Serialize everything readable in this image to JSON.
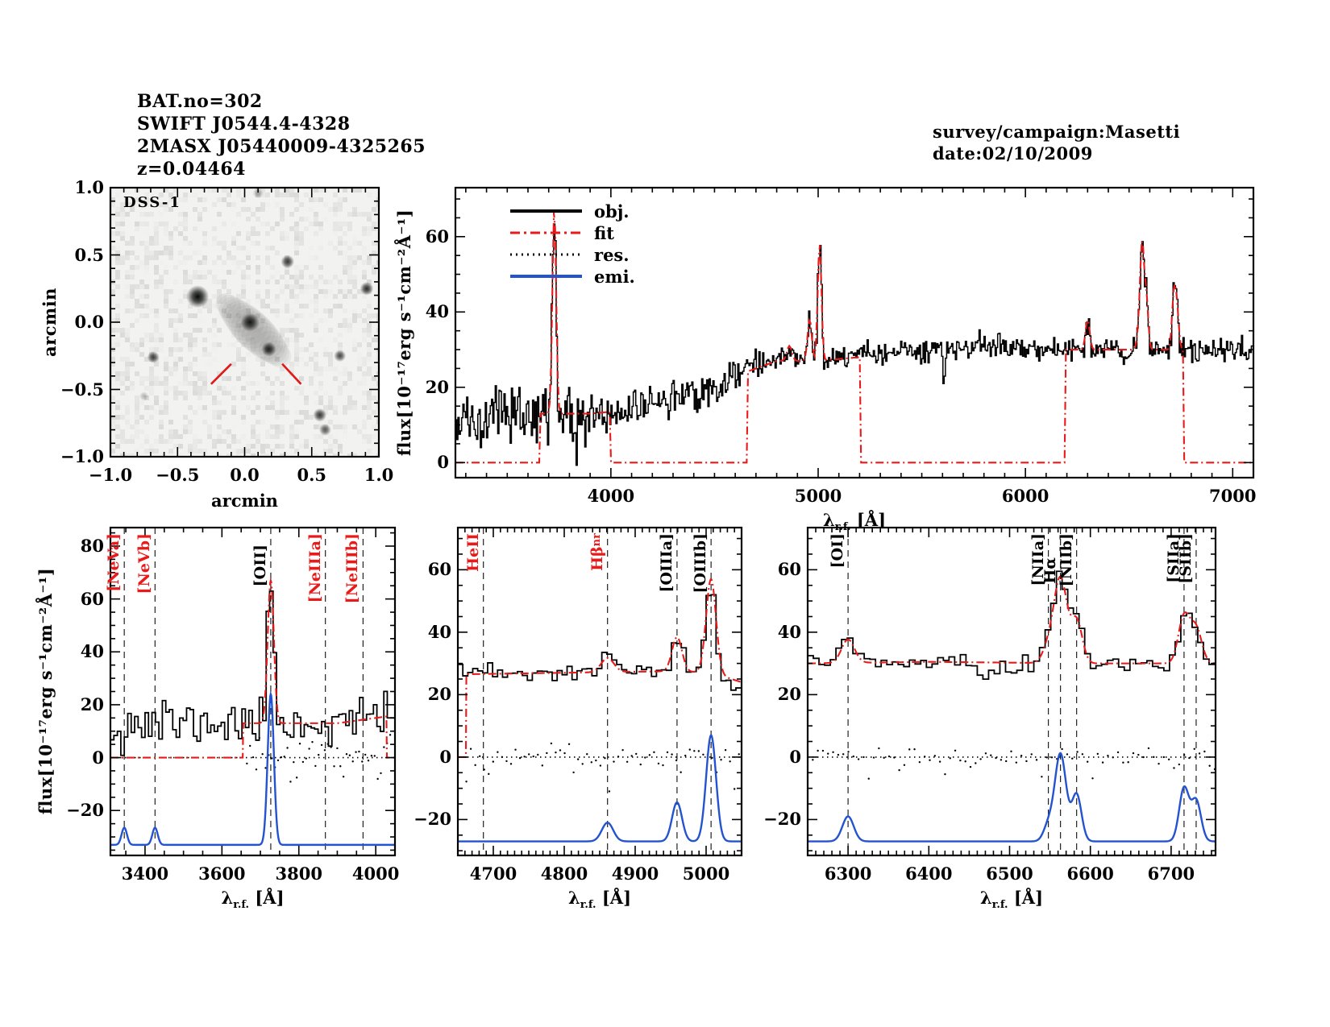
{
  "title_block": {
    "lines": [
      "BAT.no=302",
      "SWIFT J0544.4-4328",
      "2MASX J05440009-4325265",
      "z=0.04464"
    ]
  },
  "annotation_block": {
    "lines": [
      "survey/campaign:Masetti",
      "date:02/10/2009"
    ]
  },
  "colors": {
    "obj": "#000000",
    "fit": "#e81a1a",
    "res": "#000000",
    "emi": "#2353cf",
    "vline": "#222222",
    "marker_red": "#e01818"
  },
  "flux_axis_label": "flux[10⁻¹⁷erg s⁻¹cm⁻²Å⁻¹]",
  "wavelength_axis": {
    "symbol": "λ",
    "subscript": "r.f.",
    "unit": "[Å]"
  },
  "legend": {
    "items": [
      {
        "label": "obj.",
        "color": "#000000",
        "style": "solid"
      },
      {
        "label": "fit",
        "color": "#e81a1a",
        "style": "dashdot"
      },
      {
        "label": "res.",
        "color": "#000000",
        "style": "dotted"
      },
      {
        "label": "emi.",
        "color": "#2353cf",
        "style": "solid"
      }
    ]
  },
  "chart_data": [
    {
      "id": "dss",
      "type": "heatmap",
      "image_label": "DSS-1",
      "xlabel": "arcmin",
      "ylabel": "arcmin",
      "xlim": [
        -1,
        1
      ],
      "ylim": [
        -1,
        1
      ],
      "xticks": {
        "values": [
          -1,
          -0.5,
          0,
          0.5,
          1
        ],
        "labels": [
          "−1.0",
          "−0.5",
          "0.0",
          "0.5",
          "1.0"
        ],
        "minor": 0.1
      },
      "yticks": {
        "values": [
          -1,
          -0.5,
          0,
          0.5,
          1
        ],
        "labels": [
          "−1.0",
          "−0.5",
          "0.0",
          "0.5",
          "1.0"
        ],
        "minor": 0.1
      },
      "sources": [
        {
          "x": -0.35,
          "y": 0.19,
          "r": 0.085,
          "a": 1.0
        },
        {
          "x": 0.04,
          "y": 0.0,
          "r": 0.07,
          "a": 0.92
        },
        {
          "x": 0.18,
          "y": -0.2,
          "r": 0.055,
          "a": 0.85
        },
        {
          "x": 0.32,
          "y": 0.45,
          "r": 0.05,
          "a": 0.8
        },
        {
          "x": 0.91,
          "y": 0.25,
          "r": 0.05,
          "a": 0.85
        },
        {
          "x": -0.68,
          "y": -0.26,
          "r": 0.045,
          "a": 0.75
        },
        {
          "x": 0.71,
          "y": -0.25,
          "r": 0.045,
          "a": 0.7
        },
        {
          "x": 0.56,
          "y": -0.69,
          "r": 0.05,
          "a": 0.8
        },
        {
          "x": 0.6,
          "y": -0.8,
          "r": 0.045,
          "a": 0.65
        },
        {
          "x": -0.75,
          "y": -0.55,
          "r": 0.035,
          "a": 0.25
        },
        {
          "x": 0.1,
          "y": 0.96,
          "r": 0.04,
          "a": 0.3
        }
      ],
      "galaxy_streak": {
        "x1": -0.14,
        "y1": 0.14,
        "x2": 0.28,
        "y2": -0.27,
        "w": 0.14,
        "a": 0.05
      },
      "target_markers": [
        {
          "x1": -0.25,
          "y1": -0.46,
          "x2": -0.1,
          "y2": -0.31
        },
        {
          "x1": 0.28,
          "y1": -0.31,
          "x2": 0.42,
          "y2": -0.46
        }
      ]
    },
    {
      "id": "full_spectrum",
      "type": "line",
      "xlim": [
        3250,
        7100
      ],
      "ylim": [
        -4,
        73
      ],
      "xticks": {
        "values": [
          4000,
          5000,
          6000,
          7000
        ],
        "labels": [
          "4000",
          "5000",
          "6000",
          "7000"
        ],
        "minor": 100
      },
      "yticks": {
        "values": [
          0,
          20,
          40,
          60
        ],
        "labels": [
          "0",
          "20",
          "40",
          "60"
        ],
        "minor": 5
      },
      "bin": 6,
      "continuum": [
        [
          3250,
          11
        ],
        [
          3450,
          12
        ],
        [
          3650,
          13
        ],
        [
          3900,
          13
        ],
        [
          4100,
          14
        ],
        [
          4300,
          17
        ],
        [
          4500,
          20
        ],
        [
          4650,
          24
        ],
        [
          4800,
          27
        ],
        [
          5000,
          27
        ],
        [
          5200,
          28
        ],
        [
          5500,
          30
        ],
        [
          5800,
          31
        ],
        [
          6100,
          30
        ],
        [
          6400,
          30
        ],
        [
          6700,
          30
        ],
        [
          7100,
          30
        ]
      ],
      "emission_lines": [
        [
          3727,
          55,
          9
        ],
        [
          4861,
          4,
          12
        ],
        [
          4959,
          11,
          10
        ],
        [
          5007,
          31,
          9
        ],
        [
          6300,
          8,
          10
        ],
        [
          6548,
          5,
          9
        ],
        [
          6563,
          27,
          9
        ],
        [
          6583,
          14,
          9
        ],
        [
          6716,
          14,
          9
        ],
        [
          6731,
          10,
          9
        ]
      ],
      "noise_zones": [
        [
          4000,
          4.0
        ],
        [
          4700,
          2.5
        ],
        [
          7100,
          1.6
        ]
      ],
      "obj_extra": [
        [
          5607,
          -9,
          5
        ],
        [
          6480,
          -3,
          15
        ]
      ],
      "fit_windows": [
        [
          3655,
          4000
        ],
        [
          4660,
          5205
        ],
        [
          6190,
          6762
        ]
      ],
      "has_legend": true
    },
    {
      "id": "zoom_oii",
      "type": "line",
      "xlim": [
        3310,
        4050
      ],
      "ylim": [
        -37,
        87
      ],
      "xticks": {
        "values": [
          3400,
          3600,
          3800,
          4000
        ],
        "labels": [
          "3400",
          "3600",
          "3800",
          "4000"
        ],
        "minor": 50
      },
      "yticks": {
        "values": [
          -20,
          0,
          20,
          40,
          60,
          80
        ],
        "labels": [
          "−20",
          "0",
          "20",
          "40",
          "60",
          "80"
        ],
        "minor": 5
      },
      "bin": 9,
      "continuum": [
        [
          3310,
          13
        ],
        [
          3650,
          13
        ],
        [
          3900,
          13
        ],
        [
          4050,
          16
        ]
      ],
      "emission_lines": [
        [
          3727,
          54,
          8
        ]
      ],
      "noise_zones": [
        [
          3500,
          5.5
        ],
        [
          4050,
          4.2
        ]
      ],
      "obj_extra": [],
      "fit_windows": [
        [
          3655,
          4028
        ]
      ],
      "zero_line": true,
      "residuals": {
        "sigma": 3.2,
        "window": [
          3665,
          4040
        ]
      },
      "emission_component": {
        "baseline": -33,
        "lines": [
          [
            3346,
            6.5,
            7
          ],
          [
            3426,
            6.5,
            7
          ],
          [
            3727,
            57,
            8
          ]
        ]
      },
      "vlines": [
        3346,
        3426,
        3727,
        3869,
        3967
      ],
      "line_markers": [
        {
          "wavelength": 3346,
          "label": "[NeVa]",
          "sub": "",
          "color": "red",
          "offset": 0
        },
        {
          "wavelength": 3426,
          "label": "[NeVb]",
          "sub": "",
          "color": "red",
          "offset": 0
        },
        {
          "wavelength": 3727,
          "label": "[OII]",
          "sub": "",
          "color": "black",
          "offset": 14
        },
        {
          "wavelength": 3869,
          "label": "[NeIIIa]",
          "sub": "",
          "color": "red",
          "offset": 0
        },
        {
          "wavelength": 3967,
          "label": "[NeIIIb]",
          "sub": "",
          "color": "red",
          "offset": 0
        }
      ]
    },
    {
      "id": "zoom_hbeta_oiii",
      "type": "line",
      "xlim": [
        4650,
        5050
      ],
      "ylim": [
        -31.5,
        73.5
      ],
      "xticks": {
        "values": [
          4700,
          4800,
          4900,
          5000
        ],
        "labels": [
          "4700",
          "4800",
          "4900",
          "5000"
        ],
        "minor": 10
      },
      "yticks": {
        "values": [
          -20,
          0,
          20,
          40,
          60
        ],
        "labels": [
          "−20",
          "0",
          "20",
          "40",
          "60"
        ],
        "minor": 5
      },
      "bin": 7,
      "continuum": [
        [
          4650,
          26.5
        ],
        [
          4800,
          27
        ],
        [
          4950,
          27.5
        ],
        [
          5007,
          27
        ],
        [
          5050,
          24
        ]
      ],
      "emission_lines": [
        [
          4861,
          4.5,
          9
        ],
        [
          4959,
          11,
          7
        ],
        [
          5007,
          30,
          7
        ]
      ],
      "noise_zones": [
        [
          5050,
          1.6
        ]
      ],
      "obj_extra": [
        [
          5048,
          -5,
          20
        ]
      ],
      "fit_windows": [
        [
          4662,
          5050
        ]
      ],
      "zero_line": true,
      "residuals": {
        "sigma": 1.8,
        "window": [
          4662,
          5050
        ]
      },
      "emission_component": {
        "baseline": -27,
        "lines": [
          [
            4861,
            6,
            8
          ],
          [
            4959,
            12.5,
            7
          ],
          [
            5007,
            34,
            7
          ]
        ]
      },
      "vlines": [
        4686,
        4861,
        4959,
        5007
      ],
      "line_markers": [
        {
          "wavelength": 4686,
          "label": "HeII",
          "sub": "",
          "color": "red",
          "offset": 0
        },
        {
          "wavelength": 4861,
          "label": "Hβ",
          "sub": "nr",
          "color": "red",
          "offset": 0
        },
        {
          "wavelength": 4959,
          "label": "[OIIIa]",
          "sub": "",
          "color": "black",
          "offset": 0
        },
        {
          "wavelength": 5007,
          "label": "[OIIIb]",
          "sub": "",
          "color": "black",
          "offset": 0
        }
      ]
    },
    {
      "id": "zoom_halpha",
      "type": "line",
      "xlim": [
        6250,
        6755
      ],
      "ylim": [
        -31.5,
        73.5
      ],
      "xticks": {
        "values": [
          6300,
          6400,
          6500,
          6600,
          6700
        ],
        "labels": [
          "6300",
          "6400",
          "6500",
          "6600",
          "6700"
        ],
        "minor": 10
      },
      "yticks": {
        "values": [
          -20,
          0,
          20,
          40,
          60
        ],
        "labels": [
          "−20",
          "0",
          "20",
          "40",
          "60"
        ],
        "minor": 5
      },
      "bin": 7,
      "continuum": [
        [
          6250,
          30
        ],
        [
          6400,
          30.5
        ],
        [
          6600,
          30
        ],
        [
          6755,
          30
        ]
      ],
      "emission_lines": [
        [
          6300,
          7.5,
          8
        ],
        [
          6548,
          5,
          7
        ],
        [
          6563,
          27,
          8
        ],
        [
          6583,
          13.5,
          7
        ],
        [
          6716,
          15,
          7
        ],
        [
          6731,
          11,
          7
        ]
      ],
      "noise_zones": [
        [
          6755,
          1.4
        ]
      ],
      "obj_extra": [
        [
          6480,
          -4.5,
          18
        ]
      ],
      "fit_windows": [
        [
          6250,
          6755
        ]
      ],
      "zero_line": true,
      "residuals": {
        "sigma": 1.5,
        "window": [
          6250,
          6755
        ]
      },
      "emission_component": {
        "baseline": -27,
        "lines": [
          [
            6300,
            8,
            7
          ],
          [
            6548,
            5,
            6
          ],
          [
            6563,
            28,
            7
          ],
          [
            6583,
            15,
            6
          ],
          [
            6716,
            17,
            6
          ],
          [
            6731,
            13,
            6
          ]
        ]
      },
      "vlines": [
        6300,
        6548,
        6563,
        6583,
        6716,
        6731
      ],
      "line_markers": [
        {
          "wavelength": 6300,
          "label": "[OI]",
          "sub": "",
          "color": "black",
          "offset": 0
        },
        {
          "wavelength": 6548,
          "label": "[NIIa]",
          "sub": "",
          "color": "black",
          "offset": 0
        },
        {
          "wavelength": 6563,
          "label": "Hα",
          "sub": "",
          "color": "black",
          "offset": 30
        },
        {
          "wavelength": 6583,
          "label": "[NIIb]",
          "sub": "",
          "color": "black",
          "offset": 0
        },
        {
          "wavelength": 6716,
          "label": "[SIIa]",
          "sub": "",
          "color": "black",
          "offset": 0
        },
        {
          "wavelength": 6731,
          "label": "[SIIb]",
          "sub": "",
          "color": "black",
          "offset": 0
        }
      ]
    }
  ]
}
